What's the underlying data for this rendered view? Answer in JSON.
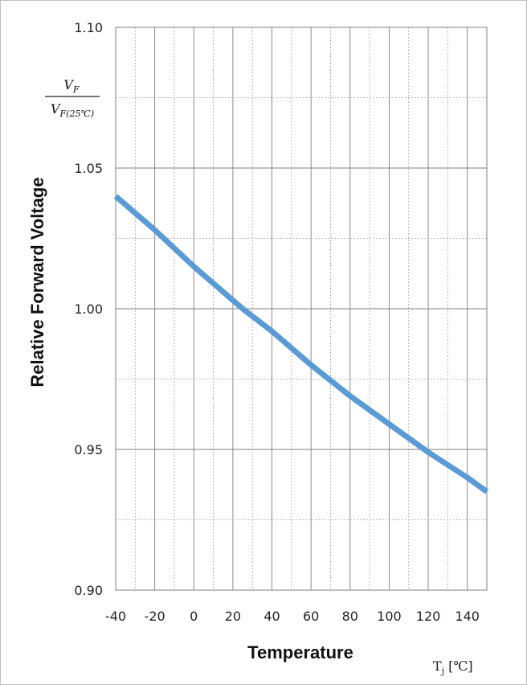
{
  "chart_data": {
    "type": "line",
    "ylabel": "Relative Forward Voltage",
    "xlabel": "Temperature",
    "x_unit": "Tj [°C]",
    "y_unit_fraction": {
      "numerator": "V_F",
      "denominator": "V_F(25°C)"
    },
    "xlim": [
      -40,
      150
    ],
    "ylim": [
      0.9,
      1.1
    ],
    "x_major_ticks": [
      -40,
      -20,
      0,
      20,
      40,
      60,
      80,
      100,
      120,
      140
    ],
    "x_tick_labels": [
      "-40",
      "-20",
      "0",
      "20",
      "40",
      "60",
      "80",
      "100",
      "120",
      "140"
    ],
    "y_major_ticks": [
      0.9,
      0.95,
      1.0,
      1.05,
      1.1
    ],
    "y_tick_labels": [
      "0.90",
      "0.95",
      "1.00",
      "1.05",
      "1.10"
    ],
    "grid": true,
    "series": [
      {
        "color": "#5b9bd5",
        "x": [
          -40,
          -20,
          0,
          20,
          25,
          40,
          60,
          80,
          100,
          120,
          140,
          150
        ],
        "y": [
          1.04,
          1.028,
          1.015,
          1.003,
          1.0,
          0.992,
          0.98,
          0.969,
          0.959,
          0.949,
          0.94,
          0.935
        ]
      }
    ]
  }
}
